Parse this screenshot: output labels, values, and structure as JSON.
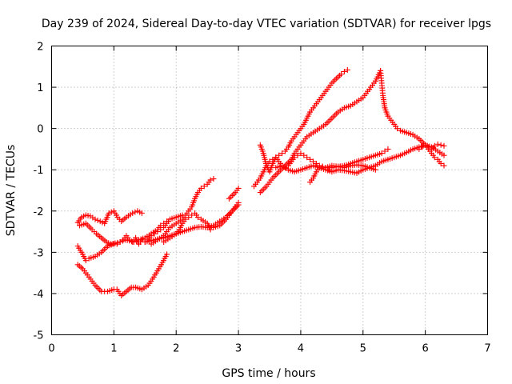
{
  "chart_data": {
    "type": "scatter",
    "title": "Day 239 of 2024, Sidereal Day-to-day VTEC variation (SDTVAR) for receiver lpgs",
    "xlabel": "GPS time / hours",
    "ylabel": "SDTVAR / TECUs",
    "xlim": [
      0,
      7
    ],
    "ylim": [
      -5,
      2
    ],
    "x_ticks": [
      "0",
      "1",
      "2",
      "3",
      "4",
      "5",
      "6",
      "7"
    ],
    "y_ticks": [
      "2",
      "1",
      "0",
      "-1",
      "-2",
      "-3",
      "-4",
      "-5"
    ],
    "grid": true,
    "marker": "+",
    "color": "#ff0000",
    "series": [
      {
        "x": [
          0.42,
          0.48,
          0.55,
          0.62,
          0.7,
          0.78,
          0.85,
          0.92,
          1.0,
          1.06,
          1.12,
          1.2,
          1.3,
          1.38,
          1.45
        ],
        "y": [
          -2.28,
          -2.15,
          -2.1,
          -2.12,
          -2.2,
          -2.25,
          -2.3,
          -2.05,
          -2.0,
          -2.15,
          -2.25,
          -2.15,
          -2.05,
          -2.0,
          -2.05
        ]
      },
      {
        "x": [
          0.45,
          0.55,
          0.65,
          0.72,
          0.8,
          0.88,
          0.95,
          1.02,
          1.1,
          1.18,
          1.25,
          1.32,
          1.4,
          1.5,
          1.6,
          1.7,
          1.75,
          1.8,
          1.85
        ],
        "y": [
          -2.35,
          -2.3,
          -2.45,
          -2.55,
          -2.65,
          -2.75,
          -2.8,
          -2.78,
          -2.75,
          -2.7,
          -2.72,
          -2.75,
          -2.7,
          -2.65,
          -2.55,
          -2.45,
          -2.35,
          -2.3,
          -2.25
        ]
      },
      {
        "x": [
          0.42,
          0.5,
          0.55,
          0.6,
          0.7,
          0.8,
          0.9,
          1.0,
          1.05,
          1.1,
          1.15,
          1.2,
          1.25,
          1.3,
          1.35,
          1.4,
          1.45,
          1.5,
          1.55,
          1.6,
          1.65,
          1.7,
          1.75,
          1.8,
          1.85,
          1.9,
          2.0,
          2.1
        ],
        "y": [
          -2.85,
          -3.05,
          -3.2,
          -3.15,
          -3.1,
          -3.0,
          -2.85,
          -2.8,
          -2.8,
          -2.75,
          -2.7,
          -2.6,
          -2.7,
          -2.75,
          -2.65,
          -2.8,
          -2.7,
          -2.75,
          -2.7,
          -2.6,
          -2.55,
          -2.5,
          -2.45,
          -2.4,
          -2.3,
          -2.2,
          -2.15,
          -2.1
        ]
      },
      {
        "x": [
          0.42,
          0.5,
          0.6,
          0.7,
          0.8,
          0.9,
          1.0,
          1.05,
          1.12,
          1.2,
          1.28,
          1.35,
          1.45,
          1.55,
          1.62,
          1.7,
          1.78,
          1.85
        ],
        "y": [
          -3.3,
          -3.4,
          -3.6,
          -3.8,
          -3.95,
          -3.95,
          -3.9,
          -3.9,
          -4.05,
          -3.95,
          -3.85,
          -3.85,
          -3.9,
          -3.8,
          -3.65,
          -3.45,
          -3.25,
          -3.05
        ]
      },
      {
        "x": [
          1.5,
          1.6,
          1.7,
          1.8,
          1.9,
          2.0,
          2.1,
          2.2,
          2.3,
          2.4,
          2.5,
          2.6,
          2.7,
          2.8,
          2.9,
          3.0
        ],
        "y": [
          -2.75,
          -2.72,
          -2.68,
          -2.65,
          -2.6,
          -2.55,
          -2.5,
          -2.45,
          -2.4,
          -2.38,
          -2.4,
          -2.35,
          -2.25,
          -2.15,
          -2.0,
          -1.85
        ]
      },
      {
        "x": [
          1.8,
          1.9,
          2.0,
          2.05,
          2.1,
          2.15,
          2.2,
          2.25,
          2.3,
          2.35,
          2.4,
          2.5,
          2.55,
          2.6,
          2.7,
          2.8,
          2.9,
          2.95,
          3.0
        ],
        "y": [
          -2.75,
          -2.65,
          -2.55,
          -2.45,
          -2.3,
          -2.2,
          -2.15,
          -2.1,
          -2.05,
          -2.15,
          -2.2,
          -2.3,
          -2.45,
          -2.4,
          -2.35,
          -2.2,
          -2.0,
          -1.9,
          -1.8
        ]
      },
      {
        "x": [
          1.6,
          1.7,
          1.8,
          1.9,
          2.0,
          2.1,
          2.2,
          2.25,
          2.3,
          2.35,
          2.4,
          2.45,
          2.5,
          2.55,
          2.6
        ],
        "y": [
          -2.8,
          -2.7,
          -2.6,
          -2.4,
          -2.3,
          -2.2,
          -2.0,
          -1.9,
          -1.7,
          -1.55,
          -1.45,
          -1.4,
          -1.35,
          -1.25,
          -1.22
        ]
      },
      {
        "x": [
          2.85,
          2.95,
          3.0
        ],
        "y": [
          -1.7,
          -1.55,
          -1.45
        ]
      },
      {
        "x": [
          3.25,
          3.3,
          3.35,
          3.4,
          3.45,
          3.5,
          3.55,
          3.6,
          3.65,
          3.7,
          3.75,
          3.8,
          3.85,
          3.9,
          3.95,
          4.0,
          4.05,
          4.1,
          4.15,
          4.2,
          4.25,
          4.3,
          4.35,
          4.4,
          4.45,
          4.5,
          4.55,
          4.6,
          4.65,
          4.7,
          4.75
        ],
        "y": [
          -1.4,
          -1.3,
          -1.2,
          -1.05,
          -0.9,
          -0.8,
          -0.75,
          -0.7,
          -0.65,
          -0.6,
          -0.55,
          -0.45,
          -0.3,
          -0.2,
          -0.1,
          0.0,
          0.1,
          0.25,
          0.4,
          0.5,
          0.6,
          0.7,
          0.8,
          0.9,
          1.0,
          1.1,
          1.18,
          1.25,
          1.32,
          1.38,
          1.42
        ]
      },
      {
        "x": [
          3.35,
          3.45,
          3.55,
          3.65,
          3.75,
          3.85,
          3.9,
          3.95,
          4.0,
          4.05,
          4.1,
          4.2,
          4.3,
          4.4,
          4.5,
          4.6,
          4.7,
          4.8,
          4.9,
          5.0,
          5.05,
          5.1,
          5.15,
          5.2,
          5.25,
          5.28
        ],
        "y": [
          -1.55,
          -1.4,
          -1.2,
          -1.05,
          -0.9,
          -0.75,
          -0.6,
          -0.5,
          -0.4,
          -0.3,
          -0.2,
          -0.1,
          0.0,
          0.1,
          0.25,
          0.4,
          0.5,
          0.55,
          0.65,
          0.75,
          0.85,
          0.95,
          1.05,
          1.15,
          1.3,
          1.4
        ]
      },
      {
        "x": [
          5.28,
          5.3,
          5.32,
          5.35,
          5.4,
          5.45,
          5.5,
          5.55,
          5.6,
          5.7,
          5.8,
          5.9,
          6.0,
          6.05,
          6.1,
          6.15,
          6.2,
          6.25,
          6.3
        ],
        "y": [
          1.4,
          1.1,
          0.8,
          0.5,
          0.3,
          0.2,
          0.1,
          0.0,
          -0.05,
          -0.1,
          -0.15,
          -0.25,
          -0.4,
          -0.5,
          -0.6,
          -0.7,
          -0.75,
          -0.85,
          -0.9
        ]
      },
      {
        "x": [
          3.35,
          3.4,
          3.45,
          3.5,
          3.55,
          3.6,
          3.65,
          3.7,
          3.75,
          3.8,
          3.85,
          3.9,
          3.95,
          4.0,
          4.05,
          4.1,
          4.15,
          4.2,
          4.25,
          4.3,
          4.35,
          4.4
        ],
        "y": [
          -0.4,
          -0.6,
          -0.9,
          -1.05,
          -0.85,
          -0.7,
          -0.8,
          -0.9,
          -0.95,
          -0.9,
          -0.8,
          -0.7,
          -0.65,
          -0.6,
          -0.65,
          -0.7,
          -0.75,
          -0.8,
          -0.85,
          -0.9,
          -0.92,
          -0.95
        ]
      },
      {
        "x": [
          4.4,
          4.5,
          4.6,
          4.7,
          4.8,
          4.9,
          5.0,
          5.1,
          5.2,
          5.3,
          5.35,
          5.4
        ],
        "y": [
          -0.95,
          -0.9,
          -0.92,
          -0.9,
          -0.85,
          -0.8,
          -0.75,
          -0.7,
          -0.65,
          -0.6,
          -0.55,
          -0.5
        ]
      },
      {
        "x": [
          3.6,
          3.7,
          3.8,
          3.9,
          4.0,
          4.1,
          4.2,
          4.3,
          4.4,
          4.5,
          4.6,
          4.7,
          4.8,
          4.9,
          5.0,
          5.1,
          5.2,
          5.3,
          5.4,
          5.5,
          5.6,
          5.7,
          5.8,
          5.9,
          6.0,
          6.1,
          6.2,
          6.3
        ],
        "y": [
          -0.95,
          -0.9,
          -1.0,
          -1.05,
          -1.0,
          -0.95,
          -0.9,
          -0.95,
          -1.0,
          -1.05,
          -1.0,
          -1.02,
          -1.05,
          -1.08,
          -1.0,
          -0.95,
          -0.9,
          -0.8,
          -0.75,
          -0.7,
          -0.65,
          -0.58,
          -0.5,
          -0.45,
          -0.4,
          -0.45,
          -0.55,
          -0.65
        ]
      },
      {
        "x": [
          4.15,
          4.2,
          4.25,
          4.3,
          4.35,
          4.4,
          4.45,
          4.5,
          4.6,
          4.7,
          4.8,
          4.9,
          5.0,
          5.1,
          5.2
        ],
        "y": [
          -1.3,
          -1.2,
          -1.05,
          -0.95,
          -0.92,
          -0.95,
          -1.0,
          -0.95,
          -0.92,
          -0.95,
          -0.9,
          -0.88,
          -0.9,
          -0.95,
          -1.0
        ]
      },
      {
        "x": [
          5.9,
          5.95,
          6.0,
          6.05,
          6.1,
          6.15,
          6.2,
          6.25,
          6.3
        ],
        "y": [
          -0.5,
          -0.45,
          -0.4,
          -0.45,
          -0.5,
          -0.42,
          -0.38,
          -0.4,
          -0.42
        ]
      }
    ]
  }
}
